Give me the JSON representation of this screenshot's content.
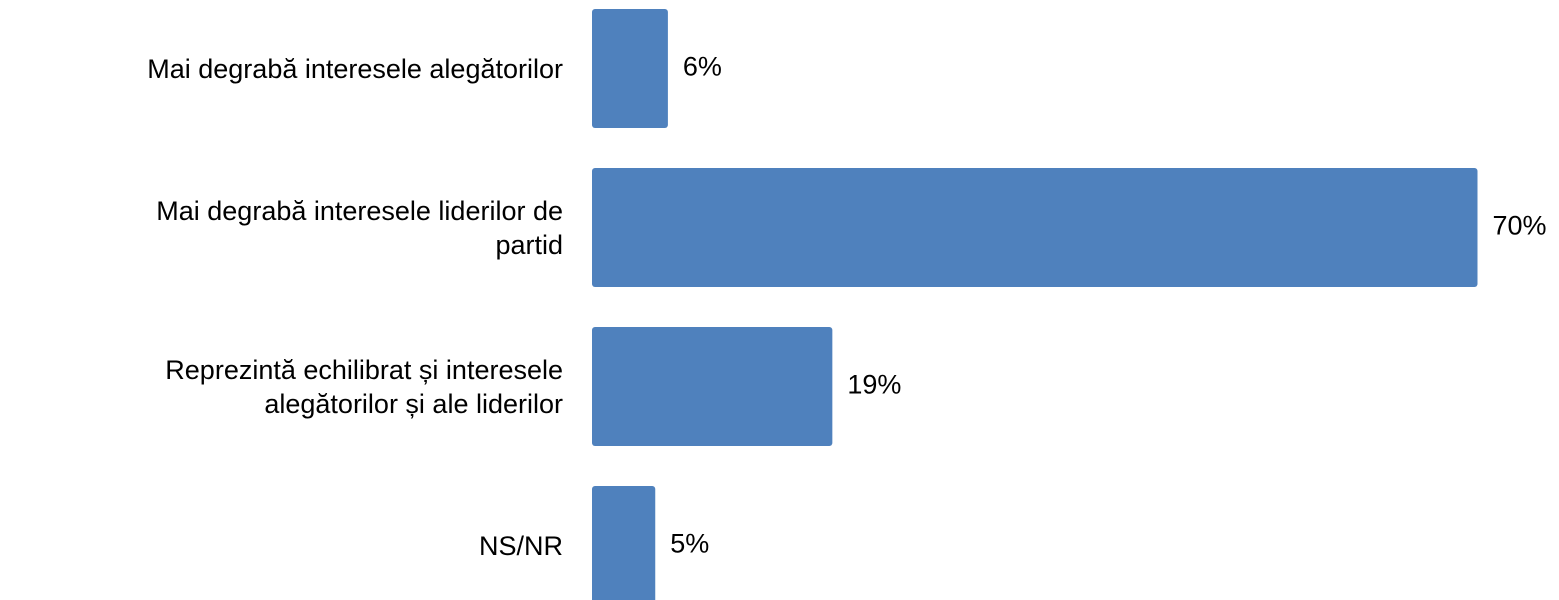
{
  "chart_data": {
    "type": "barh",
    "categories": [
      "Mai degrabă interesele alegătorilor",
      "Mai degrabă interesele liderilor de\npartid",
      "Reprezintă echilibrat și interesele\nalegătorilor și ale liderilor",
      "NS/NR"
    ],
    "values": [
      6,
      70,
      19,
      5
    ],
    "value_labels": [
      "6%",
      "70%",
      "19%",
      "5%"
    ],
    "color": "#4f81bd"
  }
}
